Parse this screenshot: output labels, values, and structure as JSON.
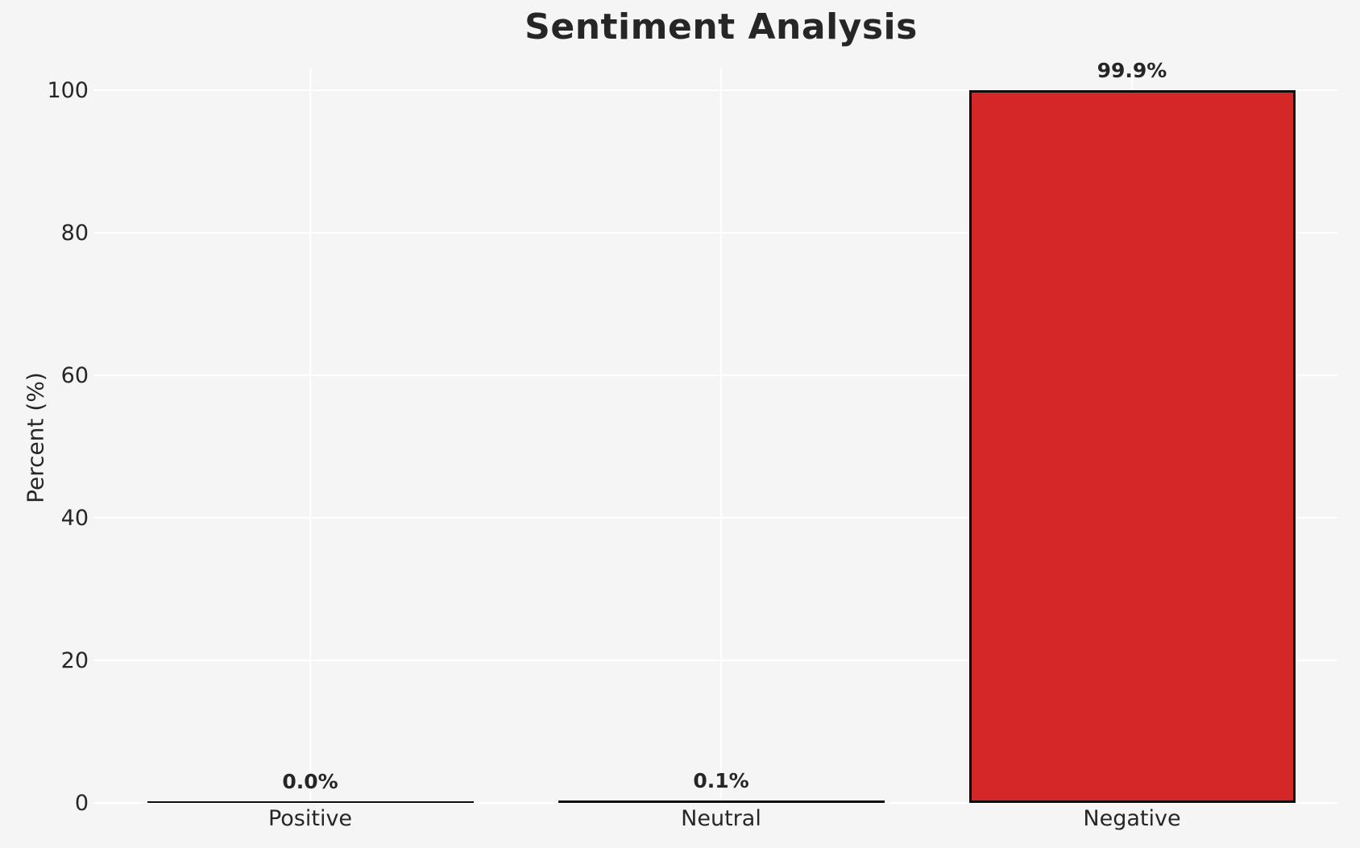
{
  "chart_data": {
    "type": "bar",
    "title": "Sentiment Analysis",
    "categories": [
      "Positive",
      "Neutral",
      "Negative"
    ],
    "values": [
      0.0,
      0.1,
      99.9
    ],
    "value_labels": [
      "0.0%",
      "0.1%",
      "99.9%"
    ],
    "xlabel": "",
    "ylabel": "Percent (%)",
    "yticks": [
      0,
      20,
      40,
      60,
      80,
      100
    ],
    "ytick_labels": [
      "0",
      "20",
      "40",
      "60",
      "80",
      "100"
    ],
    "ylim": [
      0,
      103
    ],
    "grid": true,
    "legend": false,
    "colors": {
      "figure_background": "#f5f5f6",
      "gridline": "#ffffff",
      "bar_fill_negative": "#d62728",
      "bar_edge": "#0d0d0d",
      "text": "#262626"
    }
  }
}
